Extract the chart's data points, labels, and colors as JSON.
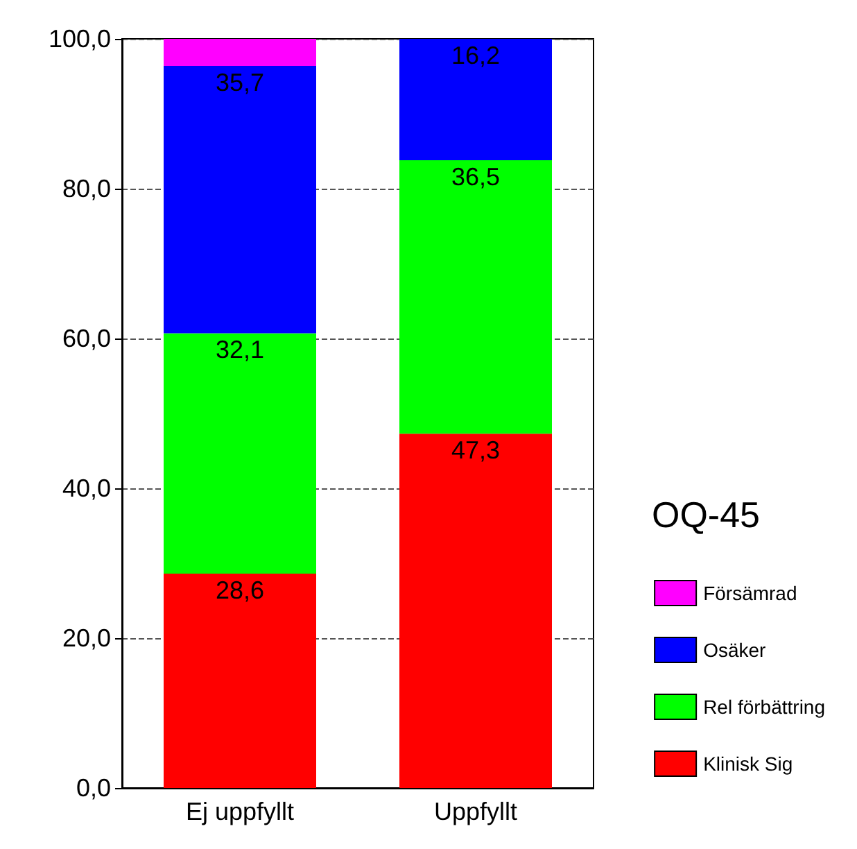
{
  "chart_data": {
    "type": "bar",
    "stacked": true,
    "legend_title": "OQ-45",
    "categories": [
      "Ej uppfyllt",
      "Uppfyllt"
    ],
    "series": [
      {
        "name": "Klinisk Sig",
        "color": "#ff0000",
        "values": [
          28.6,
          47.3
        ],
        "value_labels": [
          "28,6",
          "47,3"
        ]
      },
      {
        "name": "Rel förbättring",
        "color": "#00ff00",
        "values": [
          32.1,
          36.5
        ],
        "value_labels": [
          "32,1",
          "36,5"
        ]
      },
      {
        "name": "Osäker",
        "color": "#0000ff",
        "values": [
          35.7,
          16.2
        ],
        "value_labels": [
          "35,7",
          "16,2"
        ]
      },
      {
        "name": "Försämrad",
        "color": "#ff00ff",
        "values": [
          3.6,
          0
        ],
        "value_labels": [
          null,
          null
        ]
      }
    ],
    "ylim": [
      0,
      100
    ],
    "yticks": [
      {
        "value": 0,
        "label": "0,0"
      },
      {
        "value": 20,
        "label": "20,0"
      },
      {
        "value": 40,
        "label": "40,0"
      },
      {
        "value": 60,
        "label": "60,0"
      },
      {
        "value": 80,
        "label": "80,0"
      },
      {
        "value": 100,
        "label": "100,0"
      }
    ],
    "grid": "y",
    "legend": "right"
  }
}
